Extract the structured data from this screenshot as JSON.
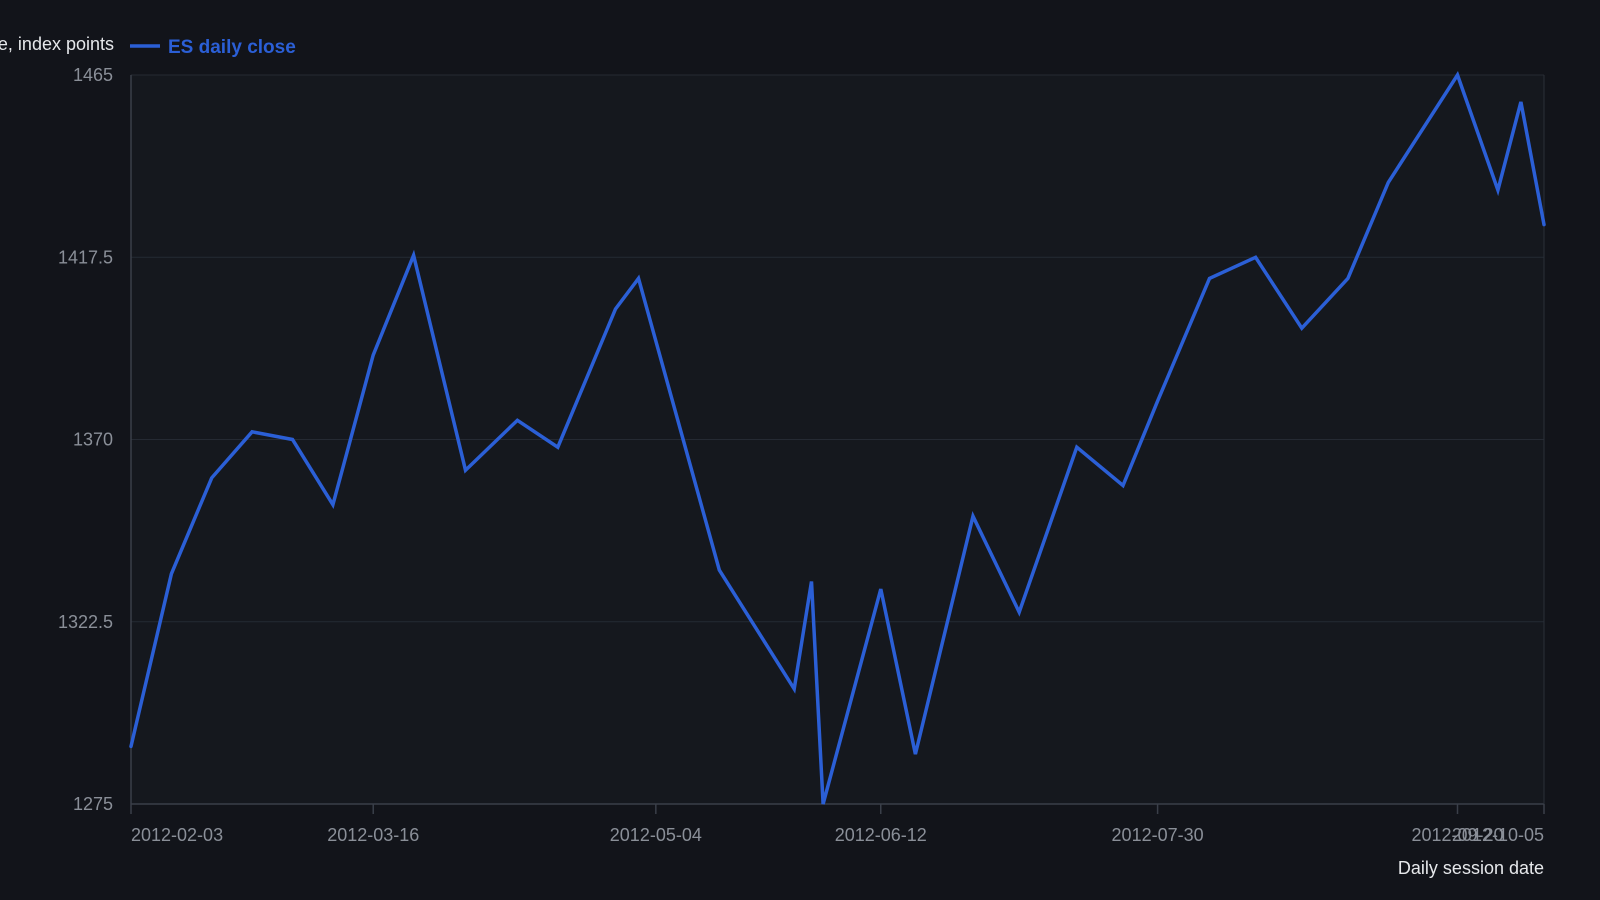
{
  "chart_data": {
    "type": "line",
    "ylabel": "Close, index points",
    "xlabel": "Daily session date",
    "ylim": [
      1275,
      1465
    ],
    "yticks": [
      1275,
      1322.5,
      1370,
      1417.5,
      1465
    ],
    "ytick_labels": [
      "1275",
      "1322.5",
      "1370",
      "1417.5",
      "1465"
    ],
    "xlim": [
      "2012-02-03",
      "2012-10-05"
    ],
    "xticks": [
      "2012-02-03",
      "2012-03-16",
      "2012-05-04",
      "2012-06-12",
      "2012-07-30",
      "2012-09-20",
      "2012-10-05"
    ],
    "xtick_labels": [
      "2012-02-03",
      "2012-03-16",
      "2012-05-04",
      "2012-06-12",
      "2012-07-30",
      "2012-09-20",
      "2012-10-05"
    ],
    "legend": "top-left",
    "grid": true,
    "colors": {
      "background": "#12141a",
      "plot_background": "#15181e",
      "series": "#2b5fd6",
      "grid": "#252a33",
      "axis": "#3a3f49",
      "tick_text": "#8a8f98",
      "label_text": "#e6e8eb"
    },
    "series": [
      {
        "name": "ES daily close",
        "x": [
          "2012-02-03",
          "2012-02-10",
          "2012-02-17",
          "2012-02-24",
          "2012-03-02",
          "2012-03-09",
          "2012-03-16",
          "2012-03-23",
          "2012-04-01",
          "2012-04-10",
          "2012-04-17",
          "2012-04-27",
          "2012-05-01",
          "2012-05-15",
          "2012-05-28",
          "2012-05-31",
          "2012-06-02",
          "2012-06-12",
          "2012-06-18",
          "2012-06-28",
          "2012-07-06",
          "2012-07-16",
          "2012-07-24",
          "2012-07-30",
          "2012-08-08",
          "2012-08-16",
          "2012-08-24",
          "2012-09-01",
          "2012-09-08",
          "2012-09-20",
          "2012-09-27",
          "2012-10-01",
          "2012-10-05"
        ],
        "y": [
          1290,
          1335,
          1360,
          1372,
          1370,
          1353,
          1392,
          1418,
          1362,
          1375,
          1368,
          1404,
          1412,
          1336,
          1305,
          1333,
          1275,
          1331,
          1288,
          1350,
          1325,
          1368,
          1358,
          1380,
          1412,
          1417.5,
          1399,
          1412,
          1437,
          1465,
          1435,
          1458,
          1426
        ]
      }
    ]
  }
}
